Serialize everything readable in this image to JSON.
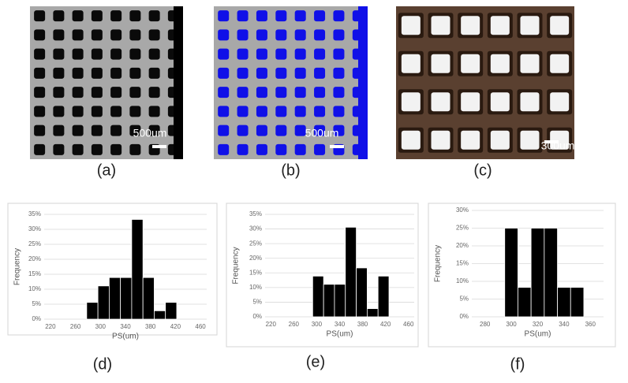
{
  "images": [
    {
      "label": "(a)",
      "scale_bar": "500um"
    },
    {
      "label": "(b)",
      "scale_bar": "500um"
    },
    {
      "label": "(c)",
      "scale_bar": "300um"
    }
  ],
  "chart_data": [
    {
      "type": "histogram",
      "label": "(d)",
      "x_label": "PS(um)",
      "y_label": "Frequency",
      "bins": [
        278,
        296,
        314,
        332,
        350,
        368,
        386,
        404,
        422
      ],
      "values": [
        5.6,
        11.1,
        13.9,
        13.9,
        33.3,
        13.9,
        2.8,
        5.6
      ],
      "color": "#000000",
      "xlim": [
        210,
        470
      ],
      "xticks": [
        220,
        260,
        300,
        340,
        380,
        420,
        460
      ],
      "ylim": [
        0,
        35
      ],
      "yticks": [
        {
          "value": 0,
          "label": "0%"
        },
        {
          "value": 5,
          "label": "5%"
        },
        {
          "value": 10,
          "label": "10%"
        },
        {
          "value": 15,
          "label": "15%"
        },
        {
          "value": 20,
          "label": "20%"
        },
        {
          "value": 25,
          "label": "25%"
        },
        {
          "value": 30,
          "label": "30%"
        },
        {
          "value": 35,
          "label": "35%"
        }
      ],
      "grid": true
    },
    {
      "type": "histogram",
      "label": "(e)",
      "x_label": "PS(um)",
      "y_label": "Frequency",
      "bins": [
        293,
        312,
        331,
        350,
        369,
        388,
        407,
        426
      ],
      "values": [
        13.9,
        11.1,
        11.1,
        30.6,
        16.7,
        2.8,
        13.9
      ],
      "color": "#000000",
      "xlim": [
        210,
        470
      ],
      "xticks": [
        220,
        260,
        300,
        340,
        380,
        420,
        460
      ],
      "ylim": [
        0,
        35
      ],
      "yticks": [
        {
          "value": 0,
          "label": "0%"
        },
        {
          "value": 5,
          "label": "5%"
        },
        {
          "value": 10,
          "label": "10%"
        },
        {
          "value": 15,
          "label": "15%"
        },
        {
          "value": 20,
          "label": "20%"
        },
        {
          "value": 25,
          "label": "25%"
        },
        {
          "value": 30,
          "label": "30%"
        },
        {
          "value": 35,
          "label": "35%"
        }
      ],
      "grid": true
    },
    {
      "type": "histogram",
      "label": "(f)",
      "x_label": "PS(um)",
      "y_label": "Frequency",
      "bins": [
        295,
        305,
        315,
        325,
        335,
        345,
        355
      ],
      "values": [
        25,
        8.3,
        25,
        25,
        8.3,
        8.3
      ],
      "color": "#000000",
      "xlim": [
        270,
        370
      ],
      "xticks": [
        280,
        300,
        320,
        340,
        360
      ],
      "ylim": [
        0,
        30
      ],
      "yticks": [
        {
          "value": 0,
          "label": "0%"
        },
        {
          "value": 5,
          "label": "5%"
        },
        {
          "value": 10,
          "label": "10%"
        },
        {
          "value": 15,
          "label": "15%"
        },
        {
          "value": 20,
          "label": "20%"
        },
        {
          "value": 25,
          "label": "25%"
        },
        {
          "value": 30,
          "label": "30%"
        }
      ],
      "grid": true
    }
  ]
}
